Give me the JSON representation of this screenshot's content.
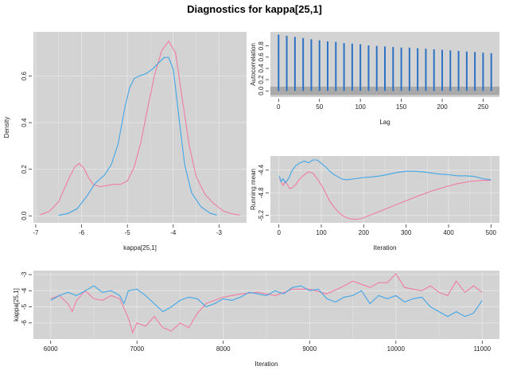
{
  "title": "Diagnostics for kappa[25,1]",
  "colors": {
    "panel_bg": "#d3d3d3",
    "grid": "#e4e4e4",
    "chain1": "#f07ca0",
    "chain2": "#3fa6e8",
    "acf": "#2c72c4",
    "ci_band": "#a9a9a9"
  },
  "chart_data": [
    {
      "id": "density",
      "type": "line",
      "xlabel": "kappa[25,1]",
      "ylabel": "Density",
      "xlim": [
        -7.05,
        -2.4
      ],
      "ylim": [
        -0.03,
        0.79
      ],
      "xticks": [
        -7,
        -6,
        -5,
        -4,
        -3
      ],
      "yticks": [
        0.0,
        0.2,
        0.4,
        0.6
      ],
      "ytick_labels": [
        "0.0",
        "0.2",
        "0.4",
        "0.6"
      ],
      "grid": true,
      "series": [
        {
          "x": [
            -6.9,
            -6.7,
            -6.5,
            -6.3,
            -6.15,
            -6.05,
            -5.95,
            -5.85,
            -5.75,
            -5.6,
            -5.45,
            -5.3,
            -5.15,
            -5.0,
            -4.85,
            -4.7,
            -4.55,
            -4.4,
            -4.25,
            -4.1,
            -3.95,
            -3.8,
            -3.65,
            -3.5,
            -3.3,
            -3.1,
            -2.9,
            -2.7,
            -2.55
          ],
          "y": [
            0.005,
            0.02,
            0.06,
            0.15,
            0.21,
            0.225,
            0.205,
            0.165,
            0.135,
            0.125,
            0.13,
            0.135,
            0.135,
            0.15,
            0.21,
            0.32,
            0.47,
            0.61,
            0.71,
            0.75,
            0.7,
            0.5,
            0.3,
            0.17,
            0.09,
            0.05,
            0.02,
            0.008,
            0.003
          ]
        },
        {
          "x": [
            -6.5,
            -6.3,
            -6.1,
            -5.9,
            -5.7,
            -5.5,
            -5.35,
            -5.2,
            -5.05,
            -4.95,
            -4.85,
            -4.75,
            -4.6,
            -4.45,
            -4.3,
            -4.2,
            -4.1,
            -4.0,
            -3.95,
            -3.85,
            -3.75,
            -3.6,
            -3.4,
            -3.2,
            -3.05
          ],
          "y": [
            0.002,
            0.01,
            0.03,
            0.08,
            0.14,
            0.175,
            0.22,
            0.31,
            0.47,
            0.55,
            0.59,
            0.6,
            0.61,
            0.63,
            0.66,
            0.68,
            0.68,
            0.63,
            0.55,
            0.38,
            0.22,
            0.1,
            0.04,
            0.012,
            0.003
          ]
        }
      ]
    },
    {
      "id": "autocorrelation",
      "type": "bar",
      "xlabel": "Lag",
      "ylabel": "Autocorrelation",
      "xlim": [
        -10,
        270
      ],
      "ylim": [
        -0.11,
        1.05
      ],
      "xticks": [
        0,
        50,
        100,
        150,
        200,
        250
      ],
      "yticks": [
        0.0,
        0.2,
        0.4,
        0.6,
        0.8
      ],
      "ytick_labels": [
        "0.0",
        "0.2",
        "0.4",
        "0.6",
        "0.8"
      ],
      "ci": [
        -0.075,
        0.075
      ],
      "lags": [
        0,
        10,
        20,
        30,
        40,
        50,
        60,
        70,
        80,
        90,
        100,
        110,
        120,
        130,
        140,
        150,
        160,
        170,
        180,
        190,
        200,
        210,
        220,
        230,
        240,
        250,
        260
      ],
      "values": [
        1.0,
        0.98,
        0.96,
        0.94,
        0.92,
        0.9,
        0.88,
        0.87,
        0.85,
        0.84,
        0.83,
        0.81,
        0.8,
        0.79,
        0.78,
        0.77,
        0.77,
        0.76,
        0.75,
        0.74,
        0.73,
        0.72,
        0.71,
        0.7,
        0.69,
        0.68,
        0.67
      ]
    },
    {
      "id": "running_mean",
      "type": "line",
      "xlabel": "Iteration",
      "ylabel": "Running mean",
      "xlim": [
        -20,
        520
      ],
      "ylim": [
        -5.33,
        -4.15
      ],
      "xticks": [
        0,
        100,
        200,
        300,
        400,
        500
      ],
      "yticks": [
        -4.4,
        -4.8,
        -5.2
      ],
      "ytick_labels": [
        "-4.4",
        "-4.8",
        "-5.2"
      ],
      "grid": true,
      "series": [
        {
          "x": [
            1,
            5,
            10,
            15,
            20,
            25,
            30,
            40,
            50,
            60,
            70,
            80,
            90,
            100,
            110,
            120,
            130,
            140,
            150,
            160,
            170,
            180,
            190,
            200,
            220,
            240,
            260,
            280,
            300,
            330,
            360,
            390,
            420,
            450,
            480,
            500
          ],
          "y": [
            -4.55,
            -4.6,
            -4.67,
            -4.6,
            -4.65,
            -4.72,
            -4.72,
            -4.65,
            -4.55,
            -4.48,
            -4.43,
            -4.45,
            -4.55,
            -4.66,
            -4.8,
            -4.95,
            -5.05,
            -5.14,
            -5.2,
            -5.24,
            -5.26,
            -5.27,
            -5.26,
            -5.24,
            -5.18,
            -5.12,
            -5.06,
            -5.0,
            -4.94,
            -4.85,
            -4.77,
            -4.7,
            -4.64,
            -4.6,
            -4.58,
            -4.58
          ]
        },
        {
          "x": [
            1,
            5,
            10,
            15,
            20,
            25,
            30,
            40,
            50,
            60,
            70,
            80,
            90,
            100,
            110,
            120,
            130,
            140,
            150,
            160,
            180,
            200,
            220,
            240,
            260,
            280,
            300,
            320,
            340,
            360,
            380,
            400,
            420,
            440,
            460,
            480,
            500
          ],
          "y": [
            -4.5,
            -4.6,
            -4.55,
            -4.62,
            -4.58,
            -4.52,
            -4.42,
            -4.32,
            -4.27,
            -4.24,
            -4.27,
            -4.22,
            -4.22,
            -4.28,
            -4.34,
            -4.42,
            -4.48,
            -4.52,
            -4.56,
            -4.57,
            -4.55,
            -4.53,
            -4.52,
            -4.5,
            -4.47,
            -4.44,
            -4.42,
            -4.42,
            -4.43,
            -4.45,
            -4.47,
            -4.48,
            -4.5,
            -4.5,
            -4.51,
            -4.55,
            -4.57
          ]
        }
      ]
    },
    {
      "id": "trace",
      "type": "line",
      "xlabel": "Iteration",
      "ylabel": "kappa[25,1]",
      "xlim": [
        5800,
        11200
      ],
      "ylim": [
        -7.0,
        -2.75
      ],
      "xticks": [
        6000,
        7000,
        8000,
        9000,
        10000,
        11000
      ],
      "yticks": [
        -3,
        -4,
        -5,
        -6
      ],
      "ytick_labels": [
        "-3",
        "-4",
        "-5",
        "-6"
      ],
      "grid": true,
      "series": [
        {
          "x": [
            6000,
            6100,
            6200,
            6250,
            6300,
            6400,
            6500,
            6600,
            6700,
            6800,
            6900,
            6950,
            7000,
            7100,
            7200,
            7300,
            7400,
            7500,
            7600,
            7700,
            7800,
            7900,
            8000,
            8200,
            8400,
            8600,
            8800,
            9000,
            9200,
            9400,
            9500,
            9600,
            9700,
            9800,
            9900,
            10000,
            10100,
            10200,
            10300,
            10400,
            10500,
            10600,
            10700,
            10800,
            10900,
            11000
          ],
          "y": [
            -4.5,
            -4.3,
            -4.8,
            -5.3,
            -4.6,
            -4.0,
            -4.5,
            -4.6,
            -4.3,
            -4.5,
            -5.7,
            -6.6,
            -6.0,
            -6.2,
            -5.6,
            -6.3,
            -6.5,
            -6.0,
            -6.3,
            -5.4,
            -4.8,
            -4.6,
            -4.4,
            -4.2,
            -4.1,
            -4.3,
            -3.9,
            -3.9,
            -4.2,
            -3.7,
            -3.4,
            -3.6,
            -3.8,
            -3.5,
            -3.5,
            -2.95,
            -3.8,
            -3.9,
            -4.0,
            -3.7,
            -4.1,
            -4.3,
            -3.4,
            -4.1,
            -3.7,
            -4.1
          ]
        },
        {
          "x": [
            6000,
            6100,
            6200,
            6300,
            6400,
            6500,
            6600,
            6700,
            6800,
            6850,
            6900,
            7000,
            7100,
            7200,
            7300,
            7400,
            7500,
            7600,
            7700,
            7800,
            7900,
            8000,
            8100,
            8200,
            8300,
            8400,
            8500,
            8600,
            8700,
            8800,
            8900,
            9000,
            9100,
            9200,
            9300,
            9400,
            9500,
            9600,
            9700,
            9800,
            9900,
            10000,
            10100,
            10200,
            10300,
            10400,
            10500,
            10600,
            10700,
            10800,
            10900,
            11000
          ],
          "y": [
            -4.6,
            -4.3,
            -4.1,
            -4.3,
            -4.0,
            -3.7,
            -4.1,
            -4.0,
            -4.3,
            -4.8,
            -4.0,
            -3.9,
            -4.3,
            -4.8,
            -5.3,
            -5.0,
            -4.6,
            -4.4,
            -4.5,
            -5.0,
            -4.8,
            -4.5,
            -4.6,
            -4.4,
            -4.1,
            -4.2,
            -4.3,
            -4.0,
            -4.2,
            -3.8,
            -3.7,
            -4.0,
            -3.9,
            -4.5,
            -4.7,
            -4.4,
            -4.3,
            -4.0,
            -4.8,
            -4.3,
            -4.5,
            -4.3,
            -4.7,
            -4.5,
            -4.4,
            -5.0,
            -5.3,
            -5.6,
            -5.3,
            -5.6,
            -5.4,
            -4.6
          ]
        }
      ]
    }
  ]
}
